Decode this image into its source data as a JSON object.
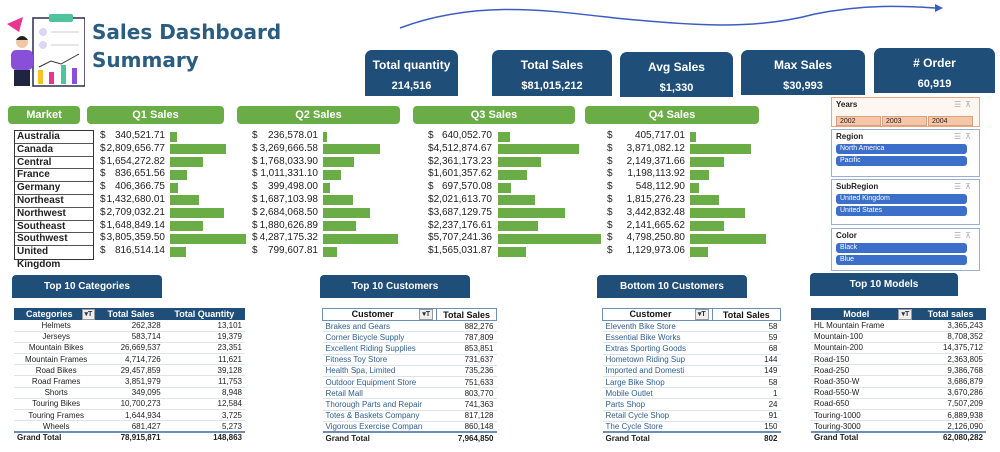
{
  "header": {
    "title_line1": "Sales Dashboard",
    "title_line2": "Summary"
  },
  "kpis": [
    {
      "label": "Total quantity",
      "value": "214,516"
    },
    {
      "label": "Total Sales",
      "value": "$81,015,212"
    },
    {
      "label": "Avg Sales",
      "value": "$1,330"
    },
    {
      "label": "Max Sales",
      "value": "$30,993"
    },
    {
      "label": "# Order",
      "value": "60,919"
    }
  ],
  "market": {
    "header": "Market",
    "quarter_headers": [
      "Q1  Sales",
      "Q2  Sales",
      "Q3  Sales",
      "Q4  Sales"
    ],
    "currency": "$",
    "markets": [
      "Australia",
      "Canada",
      "Central",
      "France",
      "Germany",
      "Northeast",
      "Northwest",
      "Southeast",
      "Southwest",
      "United Kingdom"
    ],
    "quarters": [
      [
        "340,521.71",
        "2,809,656.77",
        "1,654,272.82",
        "836,651.56",
        "406,366.75",
        "1,432,680.01",
        "2,709,032.21",
        "1,648,849.14",
        "3,805,359.50",
        "816,514.14"
      ],
      [
        "236,578.01",
        "3,269,666.58",
        "1,768,033.90",
        "1,011,331.10",
        "399,498.00",
        "1,687,103.98",
        "2,684,068.50",
        "1,880,626.89",
        "4,287,175.32",
        "799,607.81"
      ],
      [
        "640,052.70",
        "4,512,874.67",
        "2,361,173.23",
        "1,601,357.62",
        "697,570.08",
        "2,021,613.70",
        "3,687,129.75",
        "2,237,176.61",
        "5,707,241.36",
        "1,565,031.87"
      ],
      [
        "405,717.01",
        "3,871,082.12",
        "2,149,371.66",
        "1,198,113.92",
        "548,112.90",
        "1,815,276.23",
        "3,442,832.48",
        "2,141,665.62",
        "4,798,250.80",
        "1,129,973.06"
      ]
    ]
  },
  "slicers": {
    "years": {
      "title": "Years",
      "items": [
        "2002",
        "2003",
        "2004"
      ]
    },
    "region": {
      "title": "Region",
      "items": [
        "North America",
        "Pacific"
      ]
    },
    "subregion": {
      "title": "SubRegion",
      "items": [
        "United Kingdom",
        "United States"
      ]
    },
    "color": {
      "title": "Color",
      "items": [
        "Black",
        "Blue"
      ]
    }
  },
  "categories": {
    "title": "Top 10 Categories",
    "columns": [
      "Categories",
      "Total Sales",
      "Total Quantity"
    ],
    "rows": [
      [
        "Helmets",
        "262,328",
        "13,101"
      ],
      [
        "Jerseys",
        "583,714",
        "19,379"
      ],
      [
        "Mountain Bikes",
        "26,669,537",
        "23,351"
      ],
      [
        "Mountain Frames",
        "4,714,726",
        "11,621"
      ],
      [
        "Road Bikes",
        "29,457,859",
        "39,128"
      ],
      [
        "Road Frames",
        "3,851,979",
        "11,753"
      ],
      [
        "Shorts",
        "349,095",
        "8,948"
      ],
      [
        "Touring Bikes",
        "10,700,273",
        "12,584"
      ],
      [
        "Touring Frames",
        "1,644,934",
        "3,725"
      ],
      [
        "Wheels",
        "681,427",
        "5,273"
      ]
    ],
    "total": [
      "Grand Total",
      "78,915,871",
      "148,863"
    ]
  },
  "top_customers": {
    "title": "Top 10 Customers",
    "columns": [
      "Customer",
      "Total Sales"
    ],
    "rows": [
      [
        "Brakes and Gears",
        "882,276"
      ],
      [
        "Corner Bicycle Supply",
        "787,809"
      ],
      [
        "Excellent Riding Supplies",
        "853,851"
      ],
      [
        "Fitness Toy Store",
        "731,637"
      ],
      [
        "Health Spa, Limited",
        "735,236"
      ],
      [
        "Outdoor Equipment Store",
        "751,633"
      ],
      [
        "Retail Mall",
        "803,770"
      ],
      [
        "Thorough Parts and Repair",
        "741,363"
      ],
      [
        "Totes & Baskets Company",
        "817,128"
      ],
      [
        "Vigorous Exercise Compan",
        "860,148"
      ]
    ],
    "total": [
      "Grand Total",
      "7,964,850"
    ]
  },
  "bottom_customers": {
    "title": "Bottom 10 Customers",
    "columns": [
      "Customer",
      "Total Sales"
    ],
    "rows": [
      [
        "Eleventh Bike Store",
        "58"
      ],
      [
        "Essential Bike Works",
        "59"
      ],
      [
        "Extras Sporting Goods",
        "68"
      ],
      [
        "Hometown Riding Sup",
        "144"
      ],
      [
        "Imported and Domesti",
        "149"
      ],
      [
        "Large Bike Shop",
        "58"
      ],
      [
        "Mobile Outlet",
        "1"
      ],
      [
        "Parts Shop",
        "24"
      ],
      [
        "Retail Cycle Shop",
        "91"
      ],
      [
        "The Cycle Store",
        "150"
      ]
    ],
    "total": [
      "Grand Total",
      "802"
    ]
  },
  "models": {
    "title": "Top 10 Models",
    "columns": [
      "Model",
      "Total sales"
    ],
    "rows": [
      [
        "HL Mountain Frame",
        "3,365,243"
      ],
      [
        "Mountain-100",
        "8,708,352"
      ],
      [
        "Mountain-200",
        "14,375,712"
      ],
      [
        "Road-150",
        "2,363,805"
      ],
      [
        "Road-250",
        "9,386,768"
      ],
      [
        "Road-350-W",
        "3,686,879"
      ],
      [
        "Road-550-W",
        "3,670,286"
      ],
      [
        "Road-650",
        "7,507,209"
      ],
      [
        "Touring-1000",
        "6,889,938"
      ],
      [
        "Touring-3000",
        "2,126,090"
      ]
    ],
    "total": [
      "Grand Total",
      "62,080,282"
    ]
  },
  "colors": {
    "navy": "#1f4e79",
    "green": "#6aac46",
    "title": "#2a5d80",
    "slicer_item": "#3b6fc9"
  }
}
